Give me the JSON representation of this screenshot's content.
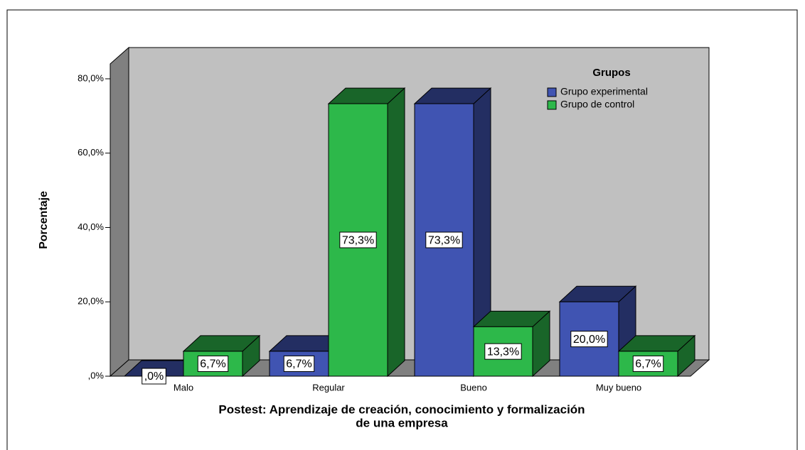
{
  "chart_data": {
    "type": "bar3d",
    "ylabel": "Porcentaje",
    "xlabel": [
      "Postest: Aprendizaje de creación, conocimiento y formalización",
      "de una empresa"
    ],
    "legend_title": "Grupos",
    "legend_position": "upper right",
    "categories": [
      "Malo",
      "Regular",
      "Bueno",
      "Muy bueno"
    ],
    "series": [
      {
        "name": "Grupo experimental",
        "color": "#4054b2",
        "values": [
          0,
          6.7,
          73.3,
          20.0
        ],
        "value_labels": [
          ",0%",
          "6,7%",
          "73,3%",
          "20,0%"
        ]
      },
      {
        "name": "Grupo de control",
        "color": "#2db84a",
        "values": [
          6.7,
          73.3,
          13.3,
          6.7
        ],
        "value_labels": [
          "6,7%",
          "73,3%",
          "13,3%",
          "6,7%"
        ]
      }
    ],
    "ylim": [
      0,
      80
    ],
    "yticks": [
      {
        "value": 0,
        "label": ",0%"
      },
      {
        "value": 20,
        "label": "20,0%"
      },
      {
        "value": 40,
        "label": "40,0%"
      },
      {
        "value": 60,
        "label": "60,0%"
      },
      {
        "value": 80,
        "label": "80,0%"
      }
    ]
  }
}
